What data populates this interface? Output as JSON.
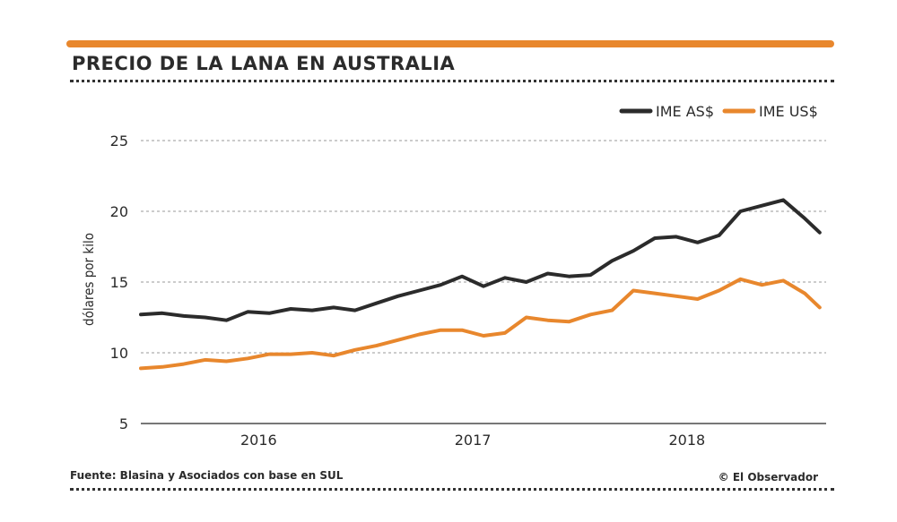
{
  "header": {
    "title": "PRECIO DE LA LANA EN AUSTRALIA"
  },
  "footer": {
    "source": "Fuente: Blasina y Asociados con base en SUL",
    "credit": "© El Observador"
  },
  "colors": {
    "accent": "#e8872d",
    "dark": "#2b2b2b",
    "grid": "#9a9a9a"
  },
  "chart_data": {
    "type": "line",
    "title": "PRECIO DE LA LANA EN AUSTRALIA",
    "xlabel": "",
    "ylabel": "dólares por kilo",
    "xlim": [
      2015.45,
      2018.65
    ],
    "ylim": [
      5,
      25
    ],
    "yticks": [
      5,
      10,
      15,
      20,
      25
    ],
    "xticks": [
      {
        "label": "2016",
        "value": 2016.0
      },
      {
        "label": "2017",
        "value": 2017.0
      },
      {
        "label": "2018",
        "value": 2018.0
      }
    ],
    "grid": "horizontal dotted",
    "legend_position": "top-right",
    "series": [
      {
        "name": "IME AS$",
        "color": "#2b2b2b",
        "x": [
          2015.45,
          2015.55,
          2015.65,
          2015.75,
          2015.85,
          2015.95,
          2016.05,
          2016.15,
          2016.25,
          2016.35,
          2016.45,
          2016.55,
          2016.65,
          2016.75,
          2016.85,
          2016.95,
          2017.05,
          2017.15,
          2017.25,
          2017.35,
          2017.45,
          2017.55,
          2017.65,
          2017.75,
          2017.85,
          2017.95,
          2018.05,
          2018.15,
          2018.25,
          2018.35,
          2018.45,
          2018.55,
          2018.62
        ],
        "y": [
          12.7,
          12.8,
          12.6,
          12.5,
          12.3,
          12.9,
          12.8,
          13.1,
          13.0,
          13.2,
          13.0,
          13.5,
          14.0,
          14.4,
          14.8,
          15.4,
          14.7,
          15.3,
          15.0,
          15.6,
          15.4,
          15.5,
          16.5,
          17.2,
          18.1,
          18.2,
          17.8,
          18.3,
          20.0,
          20.4,
          20.8,
          19.5,
          18.5
        ]
      },
      {
        "name": "IME US$",
        "color": "#e8872d",
        "x": [
          2015.45,
          2015.55,
          2015.65,
          2015.75,
          2015.85,
          2015.95,
          2016.05,
          2016.15,
          2016.25,
          2016.35,
          2016.45,
          2016.55,
          2016.65,
          2016.75,
          2016.85,
          2016.95,
          2017.05,
          2017.15,
          2017.25,
          2017.35,
          2017.45,
          2017.55,
          2017.65,
          2017.75,
          2017.85,
          2017.95,
          2018.05,
          2018.15,
          2018.25,
          2018.35,
          2018.45,
          2018.55,
          2018.62
        ],
        "y": [
          8.9,
          9.0,
          9.2,
          9.5,
          9.4,
          9.6,
          9.9,
          9.9,
          10.0,
          9.8,
          10.2,
          10.5,
          10.9,
          11.3,
          11.6,
          11.6,
          11.2,
          11.4,
          12.5,
          12.3,
          12.2,
          12.7,
          13.0,
          14.4,
          14.2,
          14.0,
          13.8,
          14.4,
          15.2,
          14.8,
          15.1,
          14.2,
          13.2
        ]
      }
    ]
  }
}
